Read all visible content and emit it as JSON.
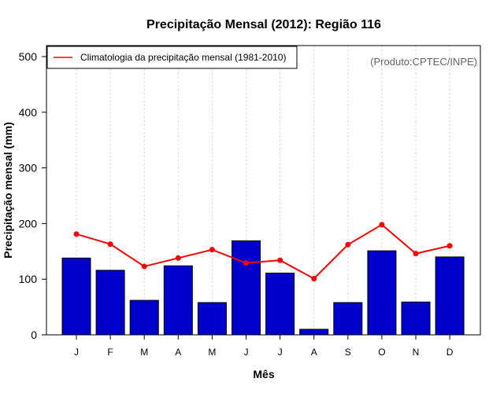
{
  "chart_data": {
    "type": "bar",
    "title": "Precipitação Mensal (2012): Região 116",
    "xlabel": "Mês",
    "ylabel": "Precipitação mensal (mm)",
    "ylim": [
      0,
      500
    ],
    "yticks": [
      0,
      100,
      200,
      300,
      400,
      500
    ],
    "categories": [
      "J",
      "F",
      "M",
      "A",
      "M",
      "J",
      "J",
      "A",
      "S",
      "O",
      "N",
      "D"
    ],
    "series": [
      {
        "name": "Precipitação mensal (2012)",
        "type": "bar",
        "color": "#0000CD",
        "values": [
          138,
          116,
          62,
          124,
          58,
          169,
          111,
          10,
          58,
          151,
          59,
          140
        ]
      },
      {
        "name": "Climatologia da precipitação mensal (1981-2010)",
        "type": "line",
        "color": "#FF0000",
        "values": [
          181,
          163,
          123,
          138,
          153,
          129,
          134,
          101,
          162,
          198,
          146,
          160
        ]
      }
    ],
    "legend": {
      "label": "Climatologia da precipitação mensal (1981-2010)",
      "placement": "top-left"
    },
    "annotation": "(Produto:CPTEC/INPE)",
    "grid": "vertical dotted"
  }
}
